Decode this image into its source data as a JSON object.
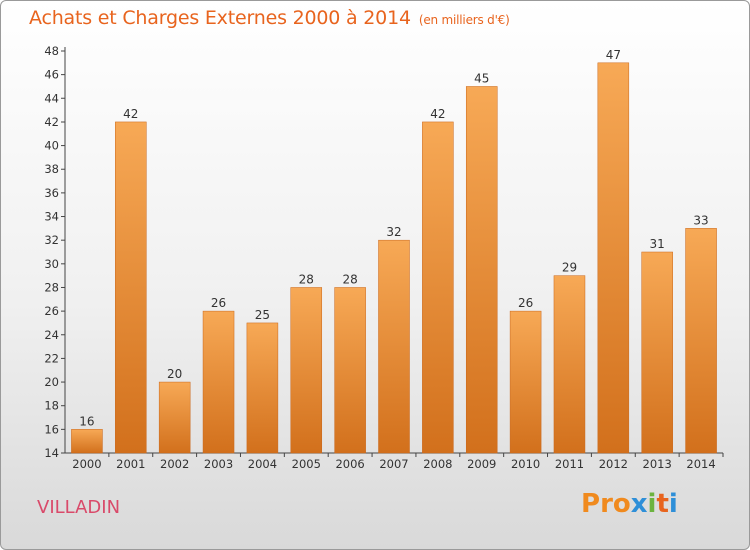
{
  "header": {
    "title": "Achats et Charges Externes 2000 à 2014",
    "subtitle": "(en milliers d'€)"
  },
  "footer": {
    "city": "VILLADIN",
    "logo": "Proxiti"
  },
  "colors": {
    "title": "#e8641e",
    "city": "#d94a6a",
    "bar_light": "#f7a956",
    "bar_dark": "#d2701c",
    "logo_letters": [
      "#f08a1e",
      "#f08a1e",
      "#f08a1e",
      "#2e8fd8",
      "#6cb33f",
      "#e8641e",
      "#2e8fd8"
    ]
  },
  "chart_data": {
    "type": "bar",
    "categories": [
      "2000",
      "2001",
      "2002",
      "2003",
      "2004",
      "2005",
      "2006",
      "2007",
      "2008",
      "2009",
      "2010",
      "2011",
      "2012",
      "2013",
      "2014"
    ],
    "values": [
      16,
      42,
      20,
      26,
      25,
      28,
      28,
      32,
      42,
      45,
      26,
      29,
      47,
      31,
      33
    ],
    "ylim": [
      14,
      48
    ],
    "yticks": [
      14,
      16,
      18,
      20,
      22,
      24,
      26,
      28,
      30,
      32,
      34,
      36,
      38,
      40,
      42,
      44,
      46,
      48
    ],
    "grid": false,
    "data_labels": true
  }
}
